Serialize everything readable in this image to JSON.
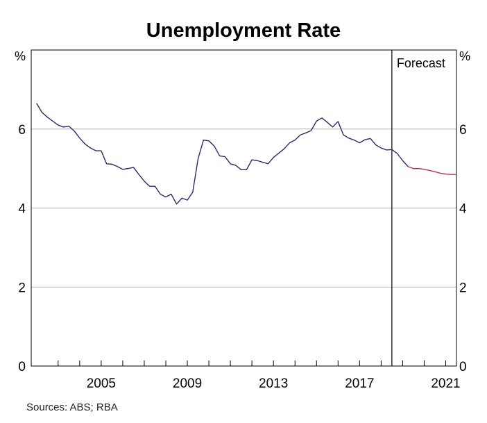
{
  "chart_data": {
    "type": "line",
    "title": "Unemployment Rate",
    "units": {
      "left": "%",
      "right": "%"
    },
    "ylim": [
      0,
      8
    ],
    "yticks": [
      0,
      2,
      4,
      6
    ],
    "xlim": [
      2001.75,
      2021.5
    ],
    "xtick_labels": [
      "2005",
      "2009",
      "2013",
      "2017",
      "2021"
    ],
    "grid": true,
    "forecast": {
      "label": "Forecast",
      "start": 2018.5
    },
    "colors": {
      "actual": "#2a2a6a",
      "forecast": "#b0306a",
      "grid": "#b3b3b3",
      "axes": "#000000"
    },
    "series": [
      {
        "values": [
          [
            2002.0,
            6.65
          ],
          [
            2002.25,
            6.42
          ],
          [
            2002.5,
            6.3
          ],
          [
            2002.75,
            6.2
          ],
          [
            2003.0,
            6.1
          ],
          [
            2003.25,
            6.05
          ],
          [
            2003.5,
            6.07
          ],
          [
            2003.75,
            5.95
          ],
          [
            2004.0,
            5.77
          ],
          [
            2004.25,
            5.62
          ],
          [
            2004.5,
            5.52
          ],
          [
            2004.75,
            5.45
          ],
          [
            2005.0,
            5.45
          ],
          [
            2005.25,
            5.12
          ],
          [
            2005.5,
            5.11
          ],
          [
            2005.75,
            5.05
          ],
          [
            2006.0,
            4.98
          ],
          [
            2006.25,
            5.0
          ],
          [
            2006.5,
            5.03
          ],
          [
            2006.75,
            4.85
          ],
          [
            2007.0,
            4.68
          ],
          [
            2007.25,
            4.55
          ],
          [
            2007.5,
            4.55
          ],
          [
            2007.75,
            4.35
          ],
          [
            2008.0,
            4.28
          ],
          [
            2008.25,
            4.35
          ],
          [
            2008.5,
            4.1
          ],
          [
            2008.75,
            4.25
          ],
          [
            2009.0,
            4.2
          ],
          [
            2009.25,
            4.4
          ],
          [
            2009.5,
            5.25
          ],
          [
            2009.75,
            5.72
          ],
          [
            2010.0,
            5.7
          ],
          [
            2010.25,
            5.57
          ],
          [
            2010.5,
            5.32
          ],
          [
            2010.75,
            5.3
          ],
          [
            2011.0,
            5.12
          ],
          [
            2011.25,
            5.08
          ],
          [
            2011.5,
            4.97
          ],
          [
            2011.75,
            4.97
          ],
          [
            2012.0,
            5.22
          ],
          [
            2012.25,
            5.2
          ],
          [
            2012.5,
            5.16
          ],
          [
            2012.75,
            5.12
          ],
          [
            2013.0,
            5.28
          ],
          [
            2013.25,
            5.39
          ],
          [
            2013.5,
            5.5
          ],
          [
            2013.75,
            5.65
          ],
          [
            2014.0,
            5.72
          ],
          [
            2014.25,
            5.85
          ],
          [
            2014.5,
            5.9
          ],
          [
            2014.75,
            5.96
          ],
          [
            2015.0,
            6.2
          ],
          [
            2015.25,
            6.28
          ],
          [
            2015.5,
            6.17
          ],
          [
            2015.75,
            6.05
          ],
          [
            2016.0,
            6.19
          ],
          [
            2016.25,
            5.85
          ],
          [
            2016.5,
            5.77
          ],
          [
            2016.75,
            5.72
          ],
          [
            2017.0,
            5.65
          ],
          [
            2017.25,
            5.73
          ],
          [
            2017.5,
            5.76
          ],
          [
            2017.75,
            5.6
          ],
          [
            2018.0,
            5.52
          ],
          [
            2018.25,
            5.47
          ],
          [
            2018.5,
            5.48
          ],
          [
            2018.75,
            5.38
          ],
          [
            2019.0,
            5.2
          ],
          [
            2019.25,
            5.05
          ]
        ]
      },
      {
        "values": [
          [
            2019.25,
            5.05
          ],
          [
            2019.5,
            5.0
          ],
          [
            2019.75,
            5.0
          ],
          [
            2020.0,
            4.98
          ],
          [
            2020.25,
            4.95
          ],
          [
            2020.5,
            4.92
          ],
          [
            2020.75,
            4.88
          ],
          [
            2021.0,
            4.86
          ],
          [
            2021.25,
            4.85
          ],
          [
            2021.5,
            4.85
          ]
        ]
      }
    ]
  },
  "footer": {
    "sources": "Sources:  ABS; RBA"
  }
}
